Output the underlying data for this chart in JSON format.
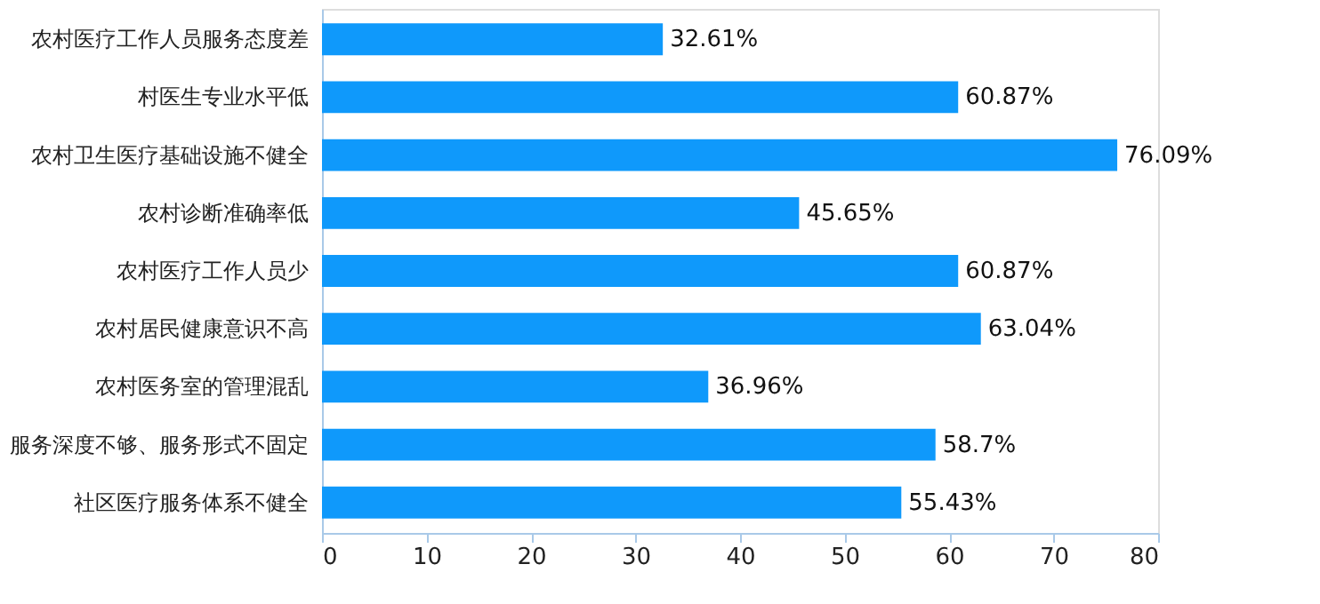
{
  "chart_data": {
    "type": "bar",
    "orientation": "horizontal",
    "categories": [
      "农村医疗工作人员服务态度差",
      "村医生专业水平低",
      "农村卫生医疗基础设施不健全",
      "农村诊断准确率低",
      "农村医疗工作人员少",
      "农村居民健康意识不高",
      "农村医务室的管理混乱",
      "服务深度不够、服务形式不固定",
      "社区医疗服务体系不健全"
    ],
    "values": [
      32.61,
      60.87,
      76.09,
      45.65,
      60.87,
      63.04,
      36.96,
      58.7,
      55.43
    ],
    "value_labels": [
      "32.61%",
      "60.87%",
      "76.09%",
      "45.65%",
      "60.87%",
      "63.04%",
      "36.96%",
      "58.7%",
      "55.43%"
    ],
    "color": "#0f99fb",
    "xlim": [
      0,
      80
    ],
    "xticks": [
      0,
      10,
      20,
      30,
      40,
      50,
      60,
      70,
      80
    ],
    "grid": false
  }
}
